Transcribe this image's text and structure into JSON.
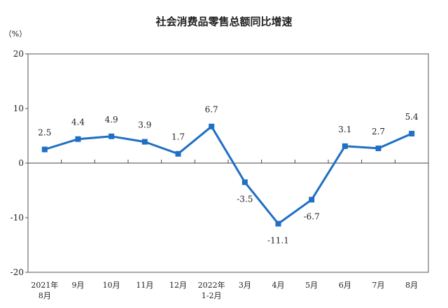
{
  "chart_data": {
    "type": "line",
    "title": "社会消费品零售总额同比增速",
    "unit_label": "（%）",
    "categories": [
      [
        "2021年",
        "8月"
      ],
      [
        "9月"
      ],
      [
        "10月"
      ],
      [
        "11月"
      ],
      [
        "12月"
      ],
      [
        "2022年",
        "1-2月"
      ],
      [
        "3月"
      ],
      [
        "4月"
      ],
      [
        "5月"
      ],
      [
        "6月"
      ],
      [
        "7月"
      ],
      [
        "8月"
      ]
    ],
    "values": [
      2.5,
      4.4,
      4.9,
      3.9,
      1.7,
      6.7,
      -3.5,
      -11.1,
      -6.7,
      3.1,
      2.7,
      5.4
    ],
    "value_labels": [
      "2.5",
      "4.4",
      "4.9",
      "3.9",
      "1.7",
      "6.7",
      "-3.5",
      "-11.1",
      "-6.7",
      "3.1",
      "2.7",
      "5.4"
    ],
    "ylim": [
      -20,
      20
    ],
    "yticks": [
      20,
      10,
      0,
      -10,
      -20
    ],
    "ytick_labels": [
      "20",
      "10",
      "0",
      "-10",
      "-20"
    ],
    "line_color": "#1f6fc4",
    "marker_color": "#1f6fc4",
    "grid": false
  }
}
